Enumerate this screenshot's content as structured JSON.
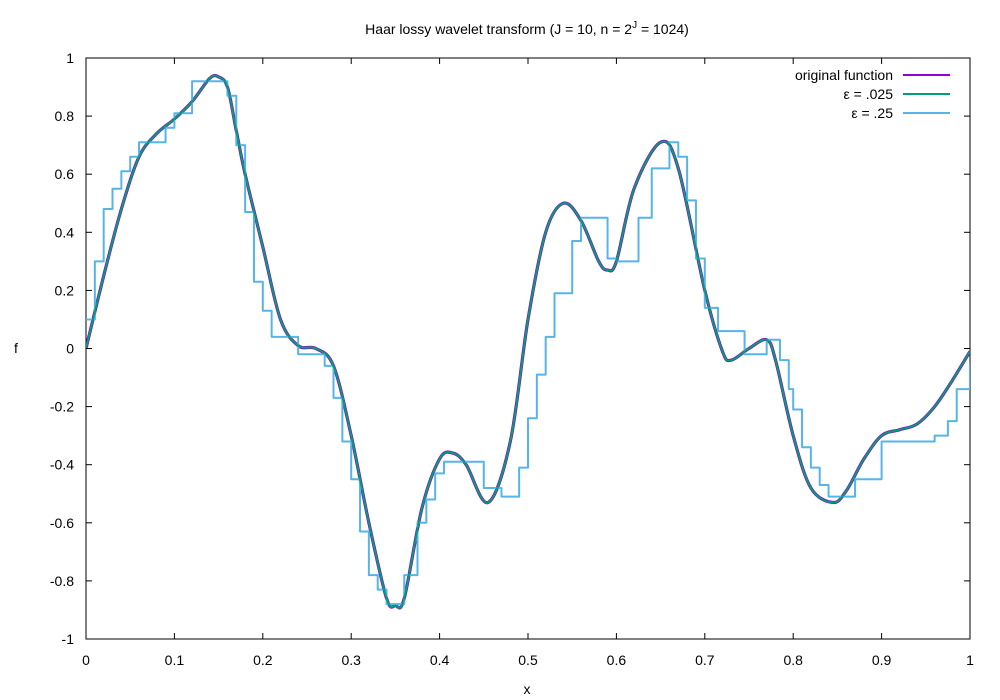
{
  "chart_data": {
    "type": "line",
    "title": {
      "prefix": "Haar lossy wavelet transform (J = 10, n = 2",
      "superscript": "J",
      "suffix": " = 1024)"
    },
    "xlabel": "x",
    "ylabel": "f",
    "xlim": [
      0,
      1
    ],
    "ylim": [
      -1,
      1
    ],
    "xticks": [
      0,
      0.1,
      0.2,
      0.3,
      0.4,
      0.5,
      0.6,
      0.7,
      0.8,
      0.9,
      1
    ],
    "xtick_labels": [
      "0",
      "0.1",
      "0.2",
      "0.3",
      "0.4",
      "0.5",
      "0.6",
      "0.7",
      "0.8",
      "0.9",
      "1"
    ],
    "yticks": [
      -1,
      -0.8,
      -0.6,
      -0.4,
      -0.2,
      0,
      0.2,
      0.4,
      0.6,
      0.8,
      1
    ],
    "ytick_labels": [
      "-1",
      "-0.8",
      "-0.6",
      "-0.4",
      "-0.2",
      "0",
      "0.2",
      "0.4",
      "0.6",
      "0.8",
      "1"
    ],
    "grid": false,
    "legend_position": "top-right",
    "series": [
      {
        "name": "original function",
        "color": "#9400d3",
        "style": "smooth",
        "x": [
          0,
          0.02,
          0.04,
          0.06,
          0.08,
          0.1,
          0.12,
          0.14,
          0.15,
          0.16,
          0.17,
          0.18,
          0.2,
          0.22,
          0.24,
          0.26,
          0.28,
          0.3,
          0.32,
          0.34,
          0.35,
          0.36,
          0.38,
          0.4,
          0.415,
          0.43,
          0.455,
          0.48,
          0.5,
          0.52,
          0.54,
          0.56,
          0.58,
          0.59,
          0.6,
          0.62,
          0.65,
          0.67,
          0.7,
          0.72,
          0.73,
          0.75,
          0.77,
          0.78,
          0.8,
          0.82,
          0.845,
          0.86,
          0.88,
          0.9,
          0.92,
          0.94,
          0.96,
          0.98,
          1
        ],
        "y": [
          0,
          0.25,
          0.48,
          0.66,
          0.74,
          0.79,
          0.85,
          0.93,
          0.935,
          0.9,
          0.75,
          0.6,
          0.35,
          0.1,
          0.01,
          0,
          -0.06,
          -0.3,
          -0.6,
          -0.86,
          -0.885,
          -0.86,
          -0.55,
          -0.38,
          -0.36,
          -0.4,
          -0.53,
          -0.32,
          0.1,
          0.4,
          0.5,
          0.44,
          0.3,
          0.27,
          0.3,
          0.55,
          0.71,
          0.62,
          0.2,
          -0.01,
          -0.04,
          0,
          0.03,
          -0.04,
          -0.3,
          -0.48,
          -0.53,
          -0.49,
          -0.38,
          -0.3,
          -0.28,
          -0.26,
          -0.2,
          -0.11,
          -0.01
        ]
      },
      {
        "name": "ε = .025",
        "color": "#009e73",
        "style": "smooth",
        "x": [
          0,
          0.02,
          0.04,
          0.06,
          0.08,
          0.1,
          0.12,
          0.14,
          0.15,
          0.16,
          0.17,
          0.18,
          0.2,
          0.22,
          0.24,
          0.26,
          0.28,
          0.3,
          0.32,
          0.34,
          0.35,
          0.36,
          0.38,
          0.4,
          0.415,
          0.43,
          0.455,
          0.48,
          0.5,
          0.52,
          0.54,
          0.56,
          0.58,
          0.59,
          0.6,
          0.62,
          0.65,
          0.67,
          0.7,
          0.72,
          0.73,
          0.75,
          0.77,
          0.78,
          0.8,
          0.82,
          0.845,
          0.86,
          0.88,
          0.9,
          0.92,
          0.94,
          0.96,
          0.98,
          1
        ],
        "y": [
          0,
          0.25,
          0.48,
          0.66,
          0.74,
          0.79,
          0.85,
          0.93,
          0.935,
          0.9,
          0.75,
          0.6,
          0.35,
          0.1,
          0.01,
          0,
          -0.06,
          -0.3,
          -0.6,
          -0.86,
          -0.885,
          -0.86,
          -0.55,
          -0.38,
          -0.36,
          -0.4,
          -0.53,
          -0.32,
          0.1,
          0.4,
          0.5,
          0.44,
          0.3,
          0.27,
          0.3,
          0.55,
          0.71,
          0.62,
          0.2,
          -0.01,
          -0.04,
          0,
          0.03,
          -0.04,
          -0.3,
          -0.48,
          -0.53,
          -0.49,
          -0.38,
          -0.3,
          -0.28,
          -0.26,
          -0.2,
          -0.11,
          -0.01
        ]
      },
      {
        "name": "ε = .25",
        "color": "#56b4e9",
        "style": "step",
        "x": [
          0,
          0.01,
          0.02,
          0.03,
          0.04,
          0.05,
          0.06,
          0.07,
          0.08,
          0.09,
          0.1,
          0.12,
          0.135,
          0.16,
          0.17,
          0.18,
          0.19,
          0.2,
          0.21,
          0.22,
          0.24,
          0.255,
          0.27,
          0.28,
          0.29,
          0.3,
          0.31,
          0.32,
          0.33,
          0.34,
          0.35,
          0.36,
          0.375,
          0.385,
          0.395,
          0.405,
          0.41,
          0.44,
          0.45,
          0.47,
          0.48,
          0.49,
          0.5,
          0.51,
          0.52,
          0.53,
          0.55,
          0.56,
          0.575,
          0.59,
          0.6,
          0.61,
          0.625,
          0.64,
          0.66,
          0.67,
          0.68,
          0.69,
          0.7,
          0.715,
          0.745,
          0.77,
          0.785,
          0.795,
          0.8,
          0.81,
          0.82,
          0.83,
          0.84,
          0.87,
          0.875,
          0.9,
          0.935,
          0.96,
          0.975,
          0.985,
          1
        ],
        "y": [
          0.1,
          0.3,
          0.48,
          0.55,
          0.61,
          0.66,
          0.71,
          0.71,
          0.71,
          0.76,
          0.81,
          0.92,
          0.92,
          0.87,
          0.7,
          0.47,
          0.23,
          0.13,
          0.04,
          0.04,
          -0.02,
          -0.02,
          -0.06,
          -0.17,
          -0.32,
          -0.45,
          -0.63,
          -0.78,
          -0.83,
          -0.88,
          -0.88,
          -0.78,
          -0.6,
          -0.52,
          -0.43,
          -0.39,
          -0.39,
          -0.39,
          -0.48,
          -0.51,
          -0.51,
          -0.41,
          -0.24,
          -0.09,
          0.04,
          0.19,
          0.37,
          0.45,
          0.45,
          0.31,
          0.3,
          0.3,
          0.45,
          0.62,
          0.71,
          0.66,
          0.51,
          0.31,
          0.14,
          0.06,
          -0.02,
          0.03,
          -0.04,
          -0.14,
          -0.21,
          -0.34,
          -0.41,
          -0.47,
          -0.51,
          -0.45,
          -0.45,
          -0.32,
          -0.32,
          -0.3,
          -0.25,
          -0.14,
          -0.05
        ]
      }
    ]
  }
}
